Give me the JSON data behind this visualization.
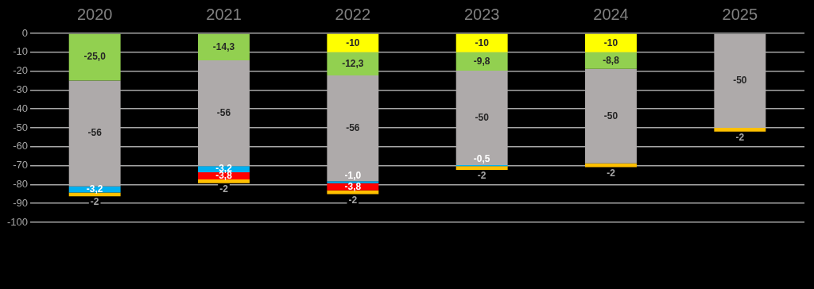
{
  "chart_data": {
    "type": "bar",
    "stacked": true,
    "categories": [
      "2020",
      "2021",
      "2022",
      "2023",
      "2024",
      "2025"
    ],
    "series": [
      {
        "color": "#ffff00",
        "values": [
          null,
          null,
          -10,
          -10,
          -10,
          null
        ],
        "value_labels": [
          null,
          null,
          "-10",
          "-10",
          "-10",
          null
        ]
      },
      {
        "color": "#92d050",
        "values": [
          -25.0,
          -14.3,
          -12.3,
          -9.8,
          -8.8,
          null
        ],
        "value_labels": [
          "-25,0",
          "-14,3",
          "-12,3",
          "-9,8",
          "-8,8",
          null
        ]
      },
      {
        "color": "#aeaaaa",
        "values": [
          -56,
          -56,
          -56,
          -50,
          -50,
          -50
        ],
        "value_labels": [
          "-56",
          "-56",
          "-56",
          "-50",
          "-50",
          "-50"
        ]
      },
      {
        "color": "#00b0f0",
        "values": [
          -3.2,
          -3.2,
          -1.0,
          -0.5,
          null,
          null
        ],
        "value_labels": [
          "-3,2",
          "-3,2",
          "-1,0",
          "-0,5",
          null,
          null
        ]
      },
      {
        "color": "#ff0000",
        "values": [
          null,
          -3.8,
          -3.8,
          null,
          null,
          null
        ],
        "value_labels": [
          null,
          "-3,8",
          "-3,8",
          null,
          null,
          null
        ]
      },
      {
        "color": "#ffc000",
        "values": [
          -2,
          -2,
          -2,
          -2,
          -2,
          -2
        ],
        "value_labels": [
          "-2",
          "-2",
          "-2",
          "-2",
          "-2",
          "-2"
        ]
      }
    ],
    "ylim": [
      -100,
      0
    ],
    "yticks": [
      0,
      -10,
      -20,
      -30,
      -40,
      -50,
      -60,
      -70,
      -80,
      -90,
      -100
    ],
    "grid": "y",
    "legend": false
  }
}
